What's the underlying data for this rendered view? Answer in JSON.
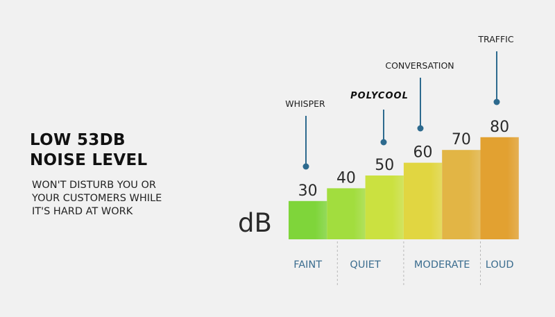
{
  "headline": [
    "LOW 53DB",
    "NOISE LEVEL"
  ],
  "subtext": [
    "WON'T DISTURB YOU OR",
    "YOUR CUSTOMERS WHILE",
    "IT'S HARD AT WORK"
  ],
  "brand_logo": "POLYCOOL",
  "colors": {
    "pin": "#2d6a8e",
    "category_text": "#3b6d8f"
  },
  "chart_data": {
    "type": "bar",
    "ylabel": "dB",
    "ylim": [
      0,
      100
    ],
    "values": [
      30,
      40,
      50,
      60,
      70,
      80
    ],
    "bar_colors": [
      "#7fd53a",
      "#a2dd3e",
      "#cbe140",
      "#e1d641",
      "#e2b545",
      "#e2a131"
    ],
    "groups": [
      {
        "label": "FAINT",
        "bars": [
          0
        ]
      },
      {
        "label": "QUIET",
        "bars": [
          1,
          2
        ]
      },
      {
        "label": "MODERATE",
        "bars": [
          3,
          4
        ]
      },
      {
        "label": "LOUD",
        "bars": [
          5
        ]
      }
    ],
    "annotations": [
      {
        "label": "WHISPER",
        "value": 30
      },
      {
        "label": "POLYCOOL",
        "value": 53,
        "is_logo": true
      },
      {
        "label": "CONVERSATION",
        "value": 60
      },
      {
        "label": "TRAFFIC",
        "value": 80
      }
    ]
  }
}
